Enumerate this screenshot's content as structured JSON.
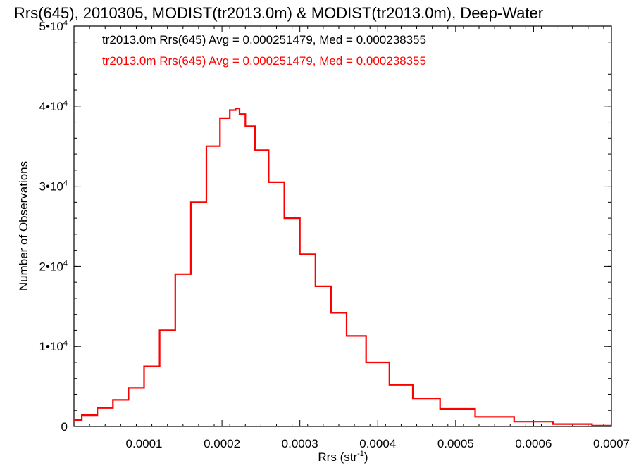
{
  "chart_data": {
    "type": "area",
    "title": "Rrs(645), 2010305, MODIST(tr2013.0m) & MODIST(tr2013.0m), Deep-Water",
    "xlabel": "Rrs (str",
    "xlabel_exp": "-1",
    "xlabel_close": ")",
    "ylabel": "Number of Observations",
    "xlim": [
      1e-05,
      0.0007
    ],
    "ylim": [
      0,
      50000
    ],
    "x_ticks": [
      "0.0001",
      "0.0002",
      "0.0003",
      "0.0004",
      "0.0005",
      "0.0006",
      "0.0007"
    ],
    "x_tick_values": [
      0.0001,
      0.0002,
      0.0003,
      0.0004,
      0.0005,
      0.0006,
      0.0007
    ],
    "y_ticks": [
      {
        "value": 0,
        "mantissa": "0",
        "exp": ""
      },
      {
        "value": 10000,
        "mantissa": "1•10",
        "exp": "4"
      },
      {
        "value": 20000,
        "mantissa": "2•10",
        "exp": "4"
      },
      {
        "value": 30000,
        "mantissa": "3•10",
        "exp": "4"
      },
      {
        "value": 40000,
        "mantissa": "4•10",
        "exp": "4"
      },
      {
        "value": 50000,
        "mantissa": "5•10",
        "exp": "4"
      }
    ],
    "legend": [
      {
        "text": "tr2013.0m Rrs(645) Avg = 0.000251479, Med = 0.000238355",
        "color": "#000000"
      },
      {
        "text": "tr2013.0m Rrs(645) Avg = 0.000251479, Med = 0.000238355",
        "color": "#ff0000"
      }
    ],
    "series": [
      {
        "color": "#ff0000",
        "x": [
          1e-05,
          3e-05,
          5e-05,
          7e-05,
          9e-05,
          0.00011,
          0.00013,
          0.00015,
          0.00017,
          0.00019,
          0.000205,
          0.000215,
          0.00022,
          0.000225,
          0.000235,
          0.00025,
          0.00027,
          0.00029,
          0.00031,
          0.00033,
          0.00035,
          0.00037,
          0.0004,
          0.00043,
          0.00046,
          0.0005,
          0.00055,
          0.0006,
          0.00065,
          0.0007
        ],
        "values": [
          800,
          1400,
          2300,
          3300,
          4800,
          7500,
          12000,
          19000,
          28000,
          35000,
          38500,
          39500,
          39700,
          39000,
          37500,
          34500,
          30500,
          26000,
          21500,
          17500,
          14200,
          11300,
          8000,
          5200,
          3500,
          2200,
          1200,
          600,
          300,
          100
        ]
      }
    ]
  }
}
